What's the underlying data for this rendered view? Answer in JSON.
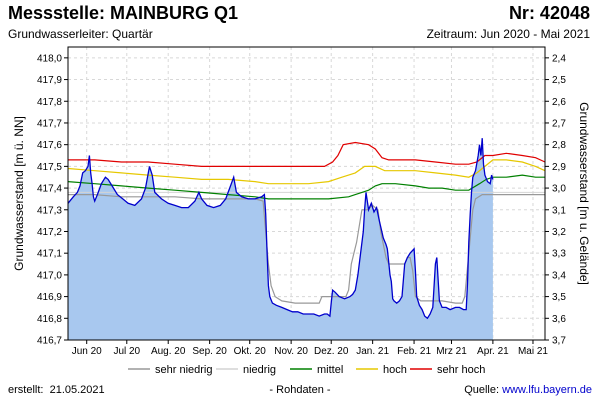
{
  "header": {
    "title": "Messstelle: MAINBURG Q1",
    "number": "Nr: 42048",
    "aquifer": "Grundwasserleiter: Quartär",
    "period": "Zeitraum: Jun 2020 - Mai 2021"
  },
  "footer": {
    "created_label": "erstellt:",
    "created_date": "21.05.2021",
    "note": "- Rohdaten -",
    "source_label": "Quelle:",
    "source_value": "www.lfu.bayern.de"
  },
  "chart_data": {
    "type": "area",
    "title": "",
    "ylabel": "Grundwasserstand [m ü. NN]",
    "ylabel_right": "Grundwasserstand [m u. Gelände]",
    "ylim": [
      416.7,
      418.05
    ],
    "ylim_right": [
      3.7,
      2.35
    ],
    "xlim": [
      0,
      357
    ],
    "grid": true,
    "legend_position": "bottom",
    "y_ticks": [
      "416,7",
      "416,8",
      "416,9",
      "417,0",
      "417,1",
      "417,2",
      "417,3",
      "417,4",
      "417,5",
      "417,6",
      "417,7",
      "417,8",
      "417,9",
      "418,0"
    ],
    "y_ticks_right": [
      "3,7",
      "3,6",
      "3,5",
      "3,4",
      "3,3",
      "3,2",
      "3,1",
      "3,0",
      "2,9",
      "2,8",
      "2,7",
      "2,6",
      "2,5",
      "2,4"
    ],
    "x_ticks": [
      {
        "label": "Jun 20",
        "x": 14
      },
      {
        "label": "Jul 20",
        "x": 44
      },
      {
        "label": "Aug. 20",
        "x": 75
      },
      {
        "label": "Sep. 20",
        "x": 106
      },
      {
        "label": "Okt. 20",
        "x": 136
      },
      {
        "label": "Nov. 20",
        "x": 167
      },
      {
        "label": "Dez. 20",
        "x": 197
      },
      {
        "label": "Jan. 21",
        "x": 228
      },
      {
        "label": "Feb. 21",
        "x": 259
      },
      {
        "label": "Mrz 21",
        "x": 287
      },
      {
        "label": "Apr. 21",
        "x": 318
      },
      {
        "label": "Mai 21",
        "x": 348
      }
    ],
    "measured": {
      "name": "",
      "color": "#0000cc",
      "fill": "#a8c8ef",
      "points": [
        [
          0,
          417.33
        ],
        [
          4,
          417.36
        ],
        [
          7,
          417.38
        ],
        [
          9,
          417.41
        ],
        [
          11,
          417.47
        ],
        [
          13,
          417.48
        ],
        [
          15,
          417.5
        ],
        [
          16,
          417.55
        ],
        [
          17,
          417.47
        ],
        [
          18,
          417.42
        ],
        [
          19,
          417.36
        ],
        [
          20,
          417.34
        ],
        [
          22,
          417.37
        ],
        [
          25,
          417.42
        ],
        [
          28,
          417.45
        ],
        [
          30,
          417.44
        ],
        [
          33,
          417.41
        ],
        [
          37,
          417.37
        ],
        [
          41,
          417.35
        ],
        [
          45,
          417.33
        ],
        [
          50,
          417.32
        ],
        [
          55,
          417.35
        ],
        [
          58,
          417.4
        ],
        [
          61,
          417.5
        ],
        [
          63,
          417.46
        ],
        [
          65,
          417.38
        ],
        [
          70,
          417.35
        ],
        [
          75,
          417.33
        ],
        [
          80,
          417.32
        ],
        [
          85,
          417.31
        ],
        [
          90,
          417.31
        ],
        [
          95,
          417.34
        ],
        [
          98,
          417.38
        ],
        [
          100,
          417.35
        ],
        [
          104,
          417.32
        ],
        [
          109,
          417.31
        ],
        [
          114,
          417.32
        ],
        [
          118,
          417.35
        ],
        [
          121,
          417.4
        ],
        [
          124,
          417.45
        ],
        [
          126,
          417.38
        ],
        [
          130,
          417.36
        ],
        [
          135,
          417.35
        ],
        [
          140,
          417.35
        ],
        [
          145,
          417.36
        ],
        [
          147,
          417.37
        ],
        [
          148,
          417.28
        ],
        [
          149,
          417.1
        ],
        [
          150,
          416.95
        ],
        [
          151,
          416.9
        ],
        [
          153,
          416.87
        ],
        [
          156,
          416.86
        ],
        [
          160,
          416.85
        ],
        [
          164,
          416.84
        ],
        [
          168,
          416.83
        ],
        [
          172,
          416.83
        ],
        [
          176,
          416.82
        ],
        [
          180,
          416.82
        ],
        [
          184,
          416.82
        ],
        [
          188,
          416.81
        ],
        [
          192,
          416.82
        ],
        [
          194,
          416.82
        ],
        [
          196,
          416.81
        ],
        [
          197,
          416.87
        ],
        [
          198,
          416.93
        ],
        [
          200,
          416.92
        ],
        [
          203,
          416.9
        ],
        [
          207,
          416.89
        ],
        [
          211,
          416.9
        ],
        [
          213,
          416.91
        ],
        [
          215,
          416.93
        ],
        [
          217,
          417.0
        ],
        [
          219,
          417.1
        ],
        [
          221,
          417.2
        ],
        [
          222,
          417.3
        ],
        [
          223,
          417.38
        ],
        [
          225,
          417.3
        ],
        [
          227,
          417.33
        ],
        [
          229,
          417.29
        ],
        [
          231,
          417.31
        ],
        [
          233,
          417.25
        ],
        [
          236,
          417.17
        ],
        [
          238,
          417.14
        ],
        [
          239,
          417.12
        ],
        [
          240,
          417.06
        ],
        [
          241,
          417.0
        ],
        [
          242,
          416.97
        ],
        [
          243,
          416.89
        ],
        [
          244,
          416.88
        ],
        [
          246,
          416.87
        ],
        [
          248,
          416.88
        ],
        [
          250,
          416.9
        ],
        [
          252,
          417.05
        ],
        [
          254,
          417.08
        ],
        [
          256,
          417.1
        ],
        [
          259,
          417.12
        ],
        [
          260,
          417.02
        ],
        [
          261,
          416.9
        ],
        [
          263,
          416.86
        ],
        [
          265,
          416.84
        ],
        [
          267,
          416.81
        ],
        [
          269,
          416.8
        ],
        [
          271,
          416.82
        ],
        [
          273,
          416.85
        ],
        [
          275,
          417.05
        ],
        [
          276,
          417.08
        ],
        [
          277,
          416.98
        ],
        [
          278,
          416.88
        ],
        [
          280,
          416.85
        ],
        [
          283,
          416.85
        ],
        [
          286,
          416.84
        ],
        [
          290,
          416.85
        ],
        [
          293,
          416.85
        ],
        [
          296,
          416.84
        ],
        [
          298,
          416.84
        ],
        [
          299,
          416.96
        ],
        [
          300,
          417.15
        ],
        [
          301,
          417.28
        ],
        [
          302,
          417.38
        ],
        [
          303,
          417.45
        ],
        [
          305,
          417.48
        ],
        [
          307,
          417.55
        ],
        [
          308,
          417.6
        ],
        [
          309,
          417.55
        ],
        [
          310,
          417.63
        ],
        [
          311,
          417.51
        ],
        [
          312,
          417.46
        ],
        [
          314,
          417.43
        ],
        [
          316,
          417.42
        ],
        [
          317,
          417.46
        ],
        [
          318,
          417.44
        ]
      ]
    },
    "series": [
      {
        "name": "sehr niedrig",
        "color": "#999999",
        "points": [
          [
            0,
            417.37
          ],
          [
            20,
            417.37
          ],
          [
            40,
            417.36
          ],
          [
            60,
            417.36
          ],
          [
            80,
            417.36
          ],
          [
            100,
            417.35
          ],
          [
            120,
            417.35
          ],
          [
            140,
            417.35
          ],
          [
            146,
            417.34
          ],
          [
            148,
            417.2
          ],
          [
            150,
            417.05
          ],
          [
            152,
            416.95
          ],
          [
            155,
            416.9
          ],
          [
            160,
            416.88
          ],
          [
            170,
            416.87
          ],
          [
            180,
            416.87
          ],
          [
            188,
            416.87
          ],
          [
            190,
            416.9
          ],
          [
            192,
            416.9
          ],
          [
            200,
            416.9
          ],
          [
            208,
            416.9
          ],
          [
            210,
            416.93
          ],
          [
            212,
            417.05
          ],
          [
            214,
            417.1
          ],
          [
            216,
            417.15
          ],
          [
            220,
            417.3
          ],
          [
            224,
            417.3
          ],
          [
            228,
            417.32
          ],
          [
            232,
            417.3
          ],
          [
            234,
            417.2
          ],
          [
            238,
            417.08
          ],
          [
            240,
            417.05
          ],
          [
            248,
            417.05
          ],
          [
            252,
            417.05
          ],
          [
            254,
            417.08
          ],
          [
            256,
            417.08
          ],
          [
            258,
            417.02
          ],
          [
            260,
            416.9
          ],
          [
            264,
            416.88
          ],
          [
            270,
            416.88
          ],
          [
            280,
            416.88
          ],
          [
            290,
            416.87
          ],
          [
            295,
            416.87
          ],
          [
            297,
            416.9
          ],
          [
            300,
            417.1
          ],
          [
            303,
            417.3
          ],
          [
            305,
            417.35
          ],
          [
            310,
            417.37
          ],
          [
            320,
            417.37
          ],
          [
            330,
            417.37
          ],
          [
            357,
            417.37
          ]
        ]
      },
      {
        "name": "niedrig",
        "color": "#d4d4d4",
        "width": 1.0,
        "points": [
          [
            0,
            417.38
          ],
          [
            357,
            417.38
          ]
        ]
      },
      {
        "name": "mittel",
        "color": "#008000",
        "points": [
          [
            0,
            417.43
          ],
          [
            20,
            417.42
          ],
          [
            40,
            417.41
          ],
          [
            60,
            417.4
          ],
          [
            80,
            417.39
          ],
          [
            100,
            417.38
          ],
          [
            120,
            417.37
          ],
          [
            140,
            417.36
          ],
          [
            150,
            417.35
          ],
          [
            165,
            417.35
          ],
          [
            180,
            417.35
          ],
          [
            195,
            417.35
          ],
          [
            210,
            417.36
          ],
          [
            215,
            417.37
          ],
          [
            220,
            417.38
          ],
          [
            225,
            417.39
          ],
          [
            230,
            417.41
          ],
          [
            235,
            417.42
          ],
          [
            245,
            417.42
          ],
          [
            260,
            417.41
          ],
          [
            270,
            417.4
          ],
          [
            280,
            417.4
          ],
          [
            290,
            417.39
          ],
          [
            300,
            417.39
          ],
          [
            308,
            417.42
          ],
          [
            313,
            417.44
          ],
          [
            318,
            417.45
          ],
          [
            328,
            417.45
          ],
          [
            340,
            417.46
          ],
          [
            350,
            417.45
          ],
          [
            357,
            417.45
          ]
        ]
      },
      {
        "name": "hoch",
        "color": "#e6c800",
        "points": [
          [
            0,
            417.49
          ],
          [
            20,
            417.48
          ],
          [
            40,
            417.47
          ],
          [
            60,
            417.46
          ],
          [
            80,
            417.45
          ],
          [
            100,
            417.44
          ],
          [
            120,
            417.44
          ],
          [
            140,
            417.43
          ],
          [
            150,
            417.42
          ],
          [
            165,
            417.42
          ],
          [
            180,
            417.42
          ],
          [
            195,
            417.43
          ],
          [
            205,
            417.45
          ],
          [
            215,
            417.47
          ],
          [
            222,
            417.5
          ],
          [
            230,
            417.5
          ],
          [
            237,
            417.48
          ],
          [
            245,
            417.48
          ],
          [
            260,
            417.48
          ],
          [
            275,
            417.47
          ],
          [
            290,
            417.46
          ],
          [
            300,
            417.45
          ],
          [
            306,
            417.47
          ],
          [
            312,
            417.5
          ],
          [
            318,
            417.53
          ],
          [
            328,
            417.53
          ],
          [
            340,
            417.52
          ],
          [
            350,
            417.5
          ],
          [
            357,
            417.48
          ]
        ]
      },
      {
        "name": "sehr hoch",
        "color": "#e00000",
        "points": [
          [
            0,
            417.53
          ],
          [
            20,
            417.53
          ],
          [
            40,
            417.52
          ],
          [
            60,
            417.52
          ],
          [
            80,
            417.51
          ],
          [
            100,
            417.5
          ],
          [
            120,
            417.5
          ],
          [
            140,
            417.5
          ],
          [
            150,
            417.5
          ],
          [
            170,
            417.5
          ],
          [
            185,
            417.5
          ],
          [
            192,
            417.5
          ],
          [
            198,
            417.52
          ],
          [
            202,
            417.55
          ],
          [
            206,
            417.6
          ],
          [
            215,
            417.61
          ],
          [
            225,
            417.6
          ],
          [
            230,
            417.58
          ],
          [
            235,
            417.54
          ],
          [
            240,
            417.53
          ],
          [
            250,
            417.53
          ],
          [
            260,
            417.53
          ],
          [
            275,
            417.52
          ],
          [
            290,
            417.51
          ],
          [
            300,
            417.51
          ],
          [
            306,
            417.52
          ],
          [
            312,
            417.55
          ],
          [
            318,
            417.55
          ],
          [
            328,
            417.56
          ],
          [
            340,
            417.55
          ],
          [
            350,
            417.54
          ],
          [
            357,
            417.52
          ]
        ]
      }
    ]
  }
}
